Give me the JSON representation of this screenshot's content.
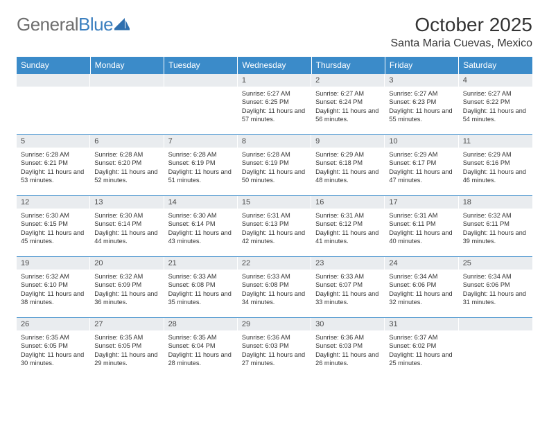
{
  "brand": {
    "part1": "General",
    "part2": "Blue"
  },
  "title": "October 2025",
  "location": "Santa Maria Cuevas, Mexico",
  "colors": {
    "header_bg": "#3b8bc9",
    "header_text": "#ffffff",
    "daynum_bg": "#e9ecef",
    "border": "#3b8bc9",
    "text": "#323232",
    "logo_gray": "#6e6e6e",
    "logo_blue": "#3b7fbf"
  },
  "day_headers": [
    "Sunday",
    "Monday",
    "Tuesday",
    "Wednesday",
    "Thursday",
    "Friday",
    "Saturday"
  ],
  "weeks": [
    [
      {
        "n": "",
        "empty": true
      },
      {
        "n": "",
        "empty": true
      },
      {
        "n": "",
        "empty": true
      },
      {
        "n": "1",
        "sunrise": "Sunrise: 6:27 AM",
        "sunset": "Sunset: 6:25 PM",
        "daylight": "Daylight: 11 hours and 57 minutes."
      },
      {
        "n": "2",
        "sunrise": "Sunrise: 6:27 AM",
        "sunset": "Sunset: 6:24 PM",
        "daylight": "Daylight: 11 hours and 56 minutes."
      },
      {
        "n": "3",
        "sunrise": "Sunrise: 6:27 AM",
        "sunset": "Sunset: 6:23 PM",
        "daylight": "Daylight: 11 hours and 55 minutes."
      },
      {
        "n": "4",
        "sunrise": "Sunrise: 6:27 AM",
        "sunset": "Sunset: 6:22 PM",
        "daylight": "Daylight: 11 hours and 54 minutes."
      }
    ],
    [
      {
        "n": "5",
        "sunrise": "Sunrise: 6:28 AM",
        "sunset": "Sunset: 6:21 PM",
        "daylight": "Daylight: 11 hours and 53 minutes."
      },
      {
        "n": "6",
        "sunrise": "Sunrise: 6:28 AM",
        "sunset": "Sunset: 6:20 PM",
        "daylight": "Daylight: 11 hours and 52 minutes."
      },
      {
        "n": "7",
        "sunrise": "Sunrise: 6:28 AM",
        "sunset": "Sunset: 6:19 PM",
        "daylight": "Daylight: 11 hours and 51 minutes."
      },
      {
        "n": "8",
        "sunrise": "Sunrise: 6:28 AM",
        "sunset": "Sunset: 6:19 PM",
        "daylight": "Daylight: 11 hours and 50 minutes."
      },
      {
        "n": "9",
        "sunrise": "Sunrise: 6:29 AM",
        "sunset": "Sunset: 6:18 PM",
        "daylight": "Daylight: 11 hours and 48 minutes."
      },
      {
        "n": "10",
        "sunrise": "Sunrise: 6:29 AM",
        "sunset": "Sunset: 6:17 PM",
        "daylight": "Daylight: 11 hours and 47 minutes."
      },
      {
        "n": "11",
        "sunrise": "Sunrise: 6:29 AM",
        "sunset": "Sunset: 6:16 PM",
        "daylight": "Daylight: 11 hours and 46 minutes."
      }
    ],
    [
      {
        "n": "12",
        "sunrise": "Sunrise: 6:30 AM",
        "sunset": "Sunset: 6:15 PM",
        "daylight": "Daylight: 11 hours and 45 minutes."
      },
      {
        "n": "13",
        "sunrise": "Sunrise: 6:30 AM",
        "sunset": "Sunset: 6:14 PM",
        "daylight": "Daylight: 11 hours and 44 minutes."
      },
      {
        "n": "14",
        "sunrise": "Sunrise: 6:30 AM",
        "sunset": "Sunset: 6:14 PM",
        "daylight": "Daylight: 11 hours and 43 minutes."
      },
      {
        "n": "15",
        "sunrise": "Sunrise: 6:31 AM",
        "sunset": "Sunset: 6:13 PM",
        "daylight": "Daylight: 11 hours and 42 minutes."
      },
      {
        "n": "16",
        "sunrise": "Sunrise: 6:31 AM",
        "sunset": "Sunset: 6:12 PM",
        "daylight": "Daylight: 11 hours and 41 minutes."
      },
      {
        "n": "17",
        "sunrise": "Sunrise: 6:31 AM",
        "sunset": "Sunset: 6:11 PM",
        "daylight": "Daylight: 11 hours and 40 minutes."
      },
      {
        "n": "18",
        "sunrise": "Sunrise: 6:32 AM",
        "sunset": "Sunset: 6:11 PM",
        "daylight": "Daylight: 11 hours and 39 minutes."
      }
    ],
    [
      {
        "n": "19",
        "sunrise": "Sunrise: 6:32 AM",
        "sunset": "Sunset: 6:10 PM",
        "daylight": "Daylight: 11 hours and 38 minutes."
      },
      {
        "n": "20",
        "sunrise": "Sunrise: 6:32 AM",
        "sunset": "Sunset: 6:09 PM",
        "daylight": "Daylight: 11 hours and 36 minutes."
      },
      {
        "n": "21",
        "sunrise": "Sunrise: 6:33 AM",
        "sunset": "Sunset: 6:08 PM",
        "daylight": "Daylight: 11 hours and 35 minutes."
      },
      {
        "n": "22",
        "sunrise": "Sunrise: 6:33 AM",
        "sunset": "Sunset: 6:08 PM",
        "daylight": "Daylight: 11 hours and 34 minutes."
      },
      {
        "n": "23",
        "sunrise": "Sunrise: 6:33 AM",
        "sunset": "Sunset: 6:07 PM",
        "daylight": "Daylight: 11 hours and 33 minutes."
      },
      {
        "n": "24",
        "sunrise": "Sunrise: 6:34 AM",
        "sunset": "Sunset: 6:06 PM",
        "daylight": "Daylight: 11 hours and 32 minutes."
      },
      {
        "n": "25",
        "sunrise": "Sunrise: 6:34 AM",
        "sunset": "Sunset: 6:06 PM",
        "daylight": "Daylight: 11 hours and 31 minutes."
      }
    ],
    [
      {
        "n": "26",
        "sunrise": "Sunrise: 6:35 AM",
        "sunset": "Sunset: 6:05 PM",
        "daylight": "Daylight: 11 hours and 30 minutes."
      },
      {
        "n": "27",
        "sunrise": "Sunrise: 6:35 AM",
        "sunset": "Sunset: 6:05 PM",
        "daylight": "Daylight: 11 hours and 29 minutes."
      },
      {
        "n": "28",
        "sunrise": "Sunrise: 6:35 AM",
        "sunset": "Sunset: 6:04 PM",
        "daylight": "Daylight: 11 hours and 28 minutes."
      },
      {
        "n": "29",
        "sunrise": "Sunrise: 6:36 AM",
        "sunset": "Sunset: 6:03 PM",
        "daylight": "Daylight: 11 hours and 27 minutes."
      },
      {
        "n": "30",
        "sunrise": "Sunrise: 6:36 AM",
        "sunset": "Sunset: 6:03 PM",
        "daylight": "Daylight: 11 hours and 26 minutes."
      },
      {
        "n": "31",
        "sunrise": "Sunrise: 6:37 AM",
        "sunset": "Sunset: 6:02 PM",
        "daylight": "Daylight: 11 hours and 25 minutes."
      },
      {
        "n": "",
        "empty": true
      }
    ]
  ]
}
